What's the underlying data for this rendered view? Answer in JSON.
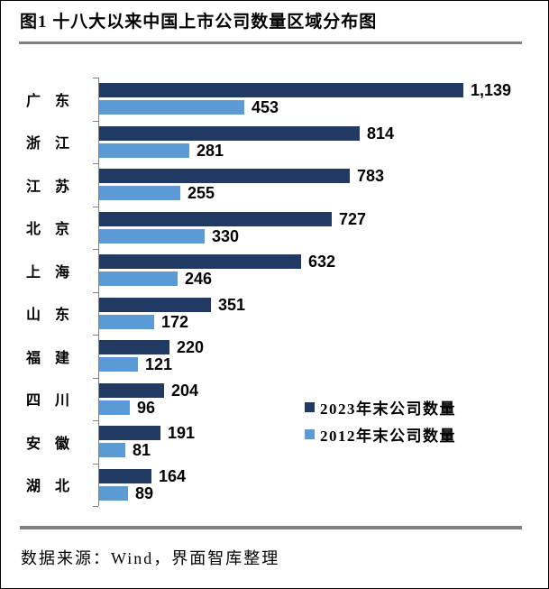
{
  "title": "图1 十八大以来中国上市公司数量区域分布图",
  "source_note": "数据来源：Wind，界面智库整理",
  "colors": {
    "series_2023": "#203A64",
    "series_2012": "#5B9BD5",
    "axis": "#808080",
    "rule": "#808080"
  },
  "legend": {
    "items": [
      {
        "label": "2023年末公司数量",
        "color": "#203A64"
      },
      {
        "label": "2012年末公司数量",
        "color": "#5B9BD5"
      }
    ]
  },
  "chart_data": {
    "type": "bar",
    "orientation": "horizontal",
    "title": "图1 十八大以来中国上市公司数量区域分布图",
    "categories": [
      "广东",
      "浙江",
      "江苏",
      "北京",
      "上海",
      "山东",
      "福建",
      "四川",
      "安徽",
      "湖北"
    ],
    "series": [
      {
        "name": "2023年末公司数量",
        "color": "#203A64",
        "values": [
          1139,
          814,
          783,
          727,
          632,
          351,
          220,
          204,
          191,
          164
        ],
        "labels": [
          "1,139",
          "814",
          "783",
          "727",
          "632",
          "351",
          "220",
          "204",
          "191",
          "164"
        ]
      },
      {
        "name": "2012年末公司数量",
        "color": "#5B9BD5",
        "values": [
          453,
          281,
          255,
          330,
          246,
          172,
          121,
          96,
          81,
          89
        ],
        "labels": [
          "453",
          "281",
          "255",
          "330",
          "246",
          "172",
          "121",
          "96",
          "81",
          "89"
        ]
      }
    ],
    "xlim": [
      0,
      1200
    ],
    "grid": false,
    "legend_position": "right-middle",
    "value_labels": true
  }
}
